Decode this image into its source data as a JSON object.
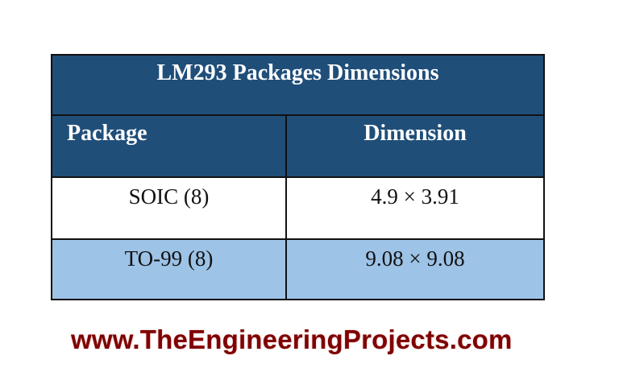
{
  "table": {
    "title": "LM293 Packages Dimensions",
    "headers": [
      "Package",
      "Dimension"
    ],
    "rows": [
      {
        "package": "SOIC (8)",
        "dimension": "4.9 × 3.91"
      },
      {
        "package": "TO-99 (8)",
        "dimension": "9.08 × 9.08"
      }
    ],
    "colors": {
      "header_bg": "#1f4e79",
      "alt_row_bg": "#9dc3e6",
      "row_bg": "#ffffff"
    }
  },
  "footer": {
    "watermark": "www.TheEngineeringProjects.com",
    "color": "#7f0000"
  }
}
